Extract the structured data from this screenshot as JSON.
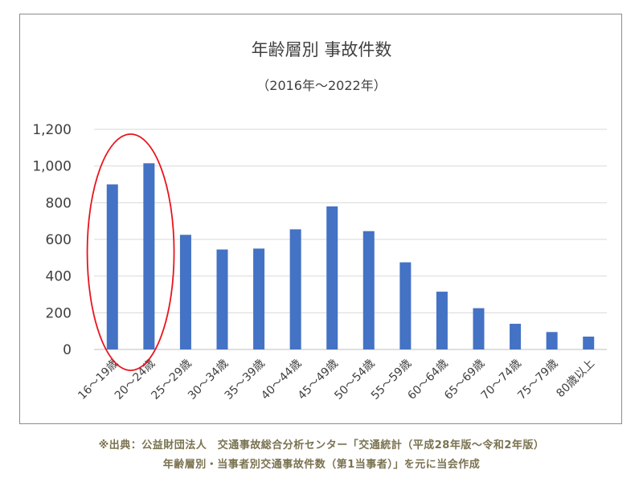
{
  "chart_data": {
    "type": "bar",
    "title": "年齢層別 事故件数",
    "subtitle": "（2016年～2022年）",
    "categories": [
      "16～19歳",
      "20～24歳",
      "25～29歳",
      "30～34歳",
      "35～39歳",
      "40～44歳",
      "45～49歳",
      "50～54歳",
      "55～59歳",
      "60～64歳",
      "65～69歳",
      "70～74歳",
      "75～79歳",
      "80歳以上"
    ],
    "values": [
      900,
      1015,
      625,
      545,
      550,
      655,
      780,
      645,
      475,
      315,
      225,
      140,
      95,
      70
    ],
    "ylim": [
      0,
      1200
    ],
    "yticks": [
      "0",
      "200",
      "400",
      "600",
      "800",
      "1,000",
      "1,200"
    ],
    "grid": true,
    "bar_color": "#4472c4",
    "highlight": {
      "categories": [
        "16～19歳",
        "20～24歳"
      ],
      "shape": "ellipse",
      "color": "#e8141e"
    }
  },
  "source": {
    "line1": "※出典：公益財団法人　交通事故総合分析センター「交通統計（平成28年版～令和2年版）",
    "line2": "年齢層別・当事者別交通事故件数（第1当事者）」を元に当会作成"
  }
}
